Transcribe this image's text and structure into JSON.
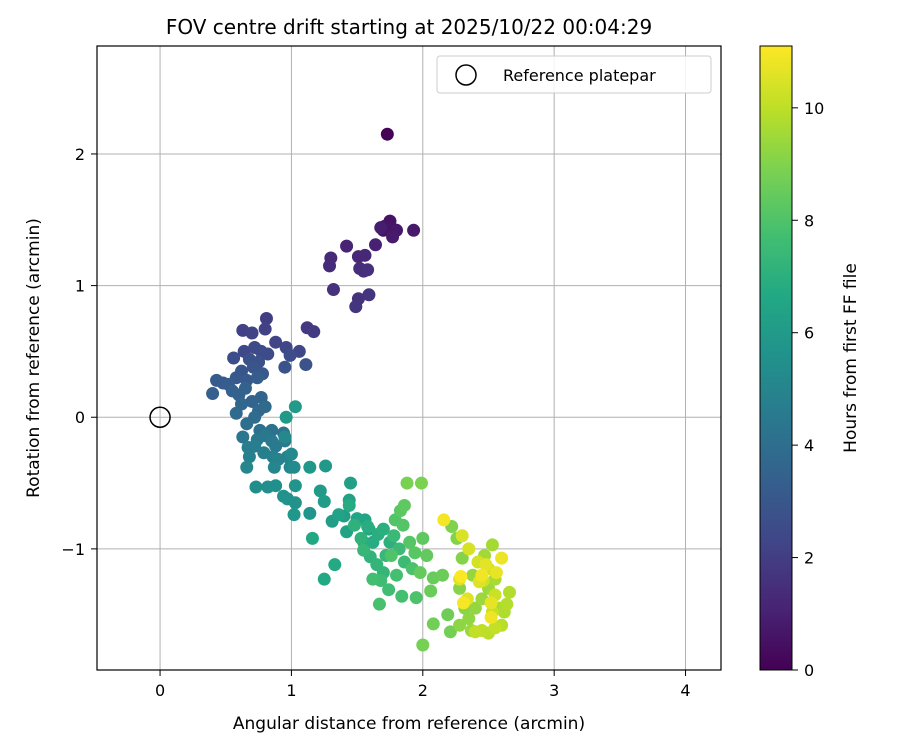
{
  "chart_data": {
    "type": "scatter",
    "title": "FOV centre drift starting at 2025/10/22 00:04:29",
    "xlabel": "Angular distance from reference (arcmin)",
    "ylabel": "Rotation from reference (arcmin)",
    "xlim": [
      -0.48,
      4.27
    ],
    "ylim": [
      -1.92,
      2.82
    ],
    "xticks": [
      0,
      1,
      2,
      3,
      4
    ],
    "yticks": [
      -1,
      0,
      1,
      2
    ],
    "grid": true,
    "legend": {
      "position": "top-right",
      "entries": [
        "Reference platepar"
      ]
    },
    "reference_point": {
      "name": "Reference platepar",
      "x": 0,
      "y": 0
    },
    "colorbar": {
      "label": "Hours from first FF file",
      "min": 0,
      "max": 11.1,
      "ticks": [
        0,
        2,
        4,
        6,
        8,
        10
      ],
      "colormap": "viridis"
    },
    "points": [
      [
        1.73,
        2.15,
        0.05
      ],
      [
        1.71,
        1.45,
        0.5
      ],
      [
        1.75,
        1.49,
        0.55
      ],
      [
        1.7,
        1.42,
        0.6
      ],
      [
        1.76,
        1.44,
        0.62
      ],
      [
        1.8,
        1.42,
        0.7
      ],
      [
        1.93,
        1.42,
        0.75
      ],
      [
        1.77,
        1.37,
        0.8
      ],
      [
        1.68,
        1.44,
        0.9
      ],
      [
        1.64,
        1.31,
        1.0
      ],
      [
        1.42,
        1.3,
        1.1
      ],
      [
        1.51,
        1.22,
        1.2
      ],
      [
        1.56,
        1.23,
        1.25
      ],
      [
        1.3,
        1.21,
        1.3
      ],
      [
        1.29,
        1.15,
        1.35
      ],
      [
        1.52,
        1.13,
        1.4
      ],
      [
        1.55,
        1.11,
        1.45
      ],
      [
        1.58,
        1.12,
        1.5
      ],
      [
        1.32,
        0.97,
        1.55
      ],
      [
        1.51,
        0.9,
        1.6
      ],
      [
        1.59,
        0.93,
        1.65
      ],
      [
        1.49,
        0.84,
        1.7
      ],
      [
        1.12,
        0.68,
        1.8
      ],
      [
        1.17,
        0.65,
        1.9
      ],
      [
        0.81,
        0.75,
        2.0
      ],
      [
        0.8,
        0.67,
        2.1
      ],
      [
        0.63,
        0.66,
        2.15
      ],
      [
        0.7,
        0.64,
        2.2
      ],
      [
        0.88,
        0.57,
        2.25
      ],
      [
        0.96,
        0.53,
        2.3
      ],
      [
        1.06,
        0.5,
        2.35
      ],
      [
        0.64,
        0.5,
        2.4
      ],
      [
        0.72,
        0.53,
        2.45
      ],
      [
        0.77,
        0.5,
        2.5
      ],
      [
        0.82,
        0.48,
        2.55
      ],
      [
        0.99,
        0.47,
        2.6
      ],
      [
        0.56,
        0.45,
        2.65
      ],
      [
        0.68,
        0.44,
        2.7
      ],
      [
        0.75,
        0.42,
        2.75
      ],
      [
        1.11,
        0.4,
        2.8
      ],
      [
        0.95,
        0.38,
        2.85
      ],
      [
        0.71,
        0.38,
        2.9
      ],
      [
        0.62,
        0.35,
        2.95
      ],
      [
        0.78,
        0.33,
        3.0
      ],
      [
        0.58,
        0.3,
        3.05
      ],
      [
        0.66,
        0.28,
        3.1
      ],
      [
        0.43,
        0.28,
        3.15
      ],
      [
        0.48,
        0.26,
        3.2
      ],
      [
        0.52,
        0.25,
        3.25
      ],
      [
        0.74,
        0.3,
        3.3
      ],
      [
        0.4,
        0.18,
        3.35
      ],
      [
        0.55,
        0.2,
        3.4
      ],
      [
        0.6,
        0.17,
        3.45
      ],
      [
        0.65,
        0.22,
        3.5
      ],
      [
        0.7,
        0.12,
        3.55
      ],
      [
        0.77,
        0.15,
        3.6
      ],
      [
        0.62,
        0.1,
        3.7
      ],
      [
        0.75,
        0.05,
        3.75
      ],
      [
        0.8,
        0.08,
        3.8
      ],
      [
        0.58,
        0.03,
        3.85
      ],
      [
        0.72,
        0.0,
        3.9
      ],
      [
        0.66,
        -0.05,
        4.0
      ],
      [
        0.76,
        -0.1,
        4.1
      ],
      [
        0.85,
        -0.1,
        4.15
      ],
      [
        0.94,
        -0.12,
        4.2
      ],
      [
        0.63,
        -0.15,
        4.3
      ],
      [
        0.74,
        -0.17,
        4.4
      ],
      [
        0.8,
        -0.14,
        4.45
      ],
      [
        0.85,
        -0.18,
        4.5
      ],
      [
        0.88,
        -0.22,
        4.55
      ],
      [
        0.95,
        -0.18,
        4.6
      ],
      [
        0.67,
        -0.23,
        4.65
      ],
      [
        0.72,
        -0.22,
        4.7
      ],
      [
        0.79,
        -0.27,
        4.75
      ],
      [
        0.86,
        -0.3,
        4.8
      ],
      [
        0.68,
        -0.3,
        4.85
      ],
      [
        0.9,
        -0.32,
        4.9
      ],
      [
        0.97,
        -0.3,
        4.95
      ],
      [
        0.99,
        -0.38,
        5.0
      ],
      [
        0.87,
        -0.38,
        5.05
      ],
      [
        0.66,
        -0.38,
        5.1
      ],
      [
        0.95,
        -0.15,
        5.15
      ],
      [
        1.0,
        -0.28,
        5.2
      ],
      [
        1.02,
        -0.38,
        5.3
      ],
      [
        0.73,
        -0.53,
        5.4
      ],
      [
        0.82,
        -0.53,
        5.45
      ],
      [
        0.88,
        -0.52,
        5.5
      ],
      [
        0.94,
        -0.6,
        5.55
      ],
      [
        0.97,
        -0.62,
        5.6
      ],
      [
        1.03,
        -0.65,
        5.65
      ],
      [
        1.03,
        -0.52,
        5.7
      ],
      [
        1.14,
        -0.73,
        5.75
      ],
      [
        1.02,
        -0.74,
        5.8
      ],
      [
        1.14,
        -0.38,
        5.85
      ],
      [
        1.26,
        -0.37,
        5.9
      ],
      [
        0.96,
        0.0,
        5.95
      ],
      [
        1.03,
        0.08,
        6.0
      ],
      [
        1.22,
        -0.56,
        6.05
      ],
      [
        1.25,
        -0.64,
        6.1
      ],
      [
        1.31,
        -0.79,
        6.15
      ],
      [
        1.4,
        -0.75,
        6.2
      ],
      [
        1.45,
        -0.5,
        6.25
      ],
      [
        1.44,
        -0.63,
        6.3
      ],
      [
        1.36,
        -0.74,
        6.35
      ],
      [
        1.42,
        -0.87,
        6.4
      ],
      [
        1.5,
        -0.77,
        6.45
      ],
      [
        1.56,
        -0.78,
        6.5
      ],
      [
        1.59,
        -0.85,
        6.55
      ],
      [
        1.16,
        -0.92,
        6.6
      ],
      [
        1.25,
        -1.23,
        6.65
      ],
      [
        1.33,
        -1.12,
        6.7
      ],
      [
        1.44,
        -0.67,
        6.75
      ],
      [
        1.55,
        -0.95,
        6.8
      ],
      [
        1.62,
        -0.95,
        6.85
      ],
      [
        1.58,
        -0.83,
        6.9
      ],
      [
        1.66,
        -0.89,
        6.95
      ],
      [
        1.7,
        -0.85,
        7.0
      ],
      [
        1.75,
        -0.95,
        7.05
      ],
      [
        1.48,
        -0.82,
        7.1
      ],
      [
        1.53,
        -0.92,
        7.15
      ],
      [
        1.6,
        -1.06,
        7.2
      ],
      [
        1.65,
        -1.12,
        7.25
      ],
      [
        1.7,
        -1.18,
        7.3
      ],
      [
        1.55,
        -1.01,
        7.35
      ],
      [
        1.72,
        -1.05,
        7.4
      ],
      [
        1.78,
        -0.9,
        7.45
      ],
      [
        1.82,
        -1.0,
        7.5
      ],
      [
        1.86,
        -1.1,
        7.55
      ],
      [
        1.68,
        -1.24,
        7.6
      ],
      [
        1.74,
        -1.31,
        7.65
      ],
      [
        1.62,
        -1.23,
        7.7
      ],
      [
        1.8,
        -1.2,
        7.75
      ],
      [
        1.84,
        -1.36,
        7.8
      ],
      [
        1.67,
        -1.42,
        7.85
      ],
      [
        1.92,
        -1.15,
        7.9
      ],
      [
        1.95,
        -1.37,
        7.95
      ],
      [
        1.76,
        -1.05,
        8.0
      ],
      [
        1.79,
        -0.78,
        8.05
      ],
      [
        1.85,
        -0.82,
        8.1
      ],
      [
        1.9,
        -0.95,
        8.15
      ],
      [
        1.94,
        -1.03,
        8.2
      ],
      [
        1.83,
        -0.71,
        8.25
      ],
      [
        1.86,
        -0.67,
        8.3
      ],
      [
        2.0,
        -0.92,
        8.35
      ],
      [
        2.03,
        -1.05,
        8.4
      ],
      [
        1.98,
        -1.18,
        8.45
      ],
      [
        2.08,
        -1.22,
        8.5
      ],
      [
        2.06,
        -1.32,
        8.55
      ],
      [
        2.15,
        -1.2,
        8.6
      ],
      [
        2.19,
        -1.5,
        8.65
      ],
      [
        2.08,
        -1.57,
        8.7
      ],
      [
        2.21,
        -1.63,
        8.75
      ],
      [
        2.0,
        -1.73,
        8.8
      ],
      [
        1.88,
        -0.5,
        8.85
      ],
      [
        1.99,
        -0.5,
        8.9
      ],
      [
        2.22,
        -0.83,
        8.95
      ],
      [
        2.26,
        -0.92,
        9.0
      ],
      [
        2.3,
        -1.07,
        9.05
      ],
      [
        2.28,
        -1.3,
        9.1
      ],
      [
        2.32,
        -1.45,
        9.15
      ],
      [
        2.28,
        -1.58,
        9.2
      ],
      [
        2.35,
        -1.53,
        9.25
      ],
      [
        2.4,
        -1.45,
        9.3
      ],
      [
        2.38,
        -1.2,
        9.35
      ],
      [
        2.37,
        -1.62,
        9.4
      ],
      [
        2.45,
        -1.38,
        9.45
      ],
      [
        2.5,
        -1.3,
        9.5
      ],
      [
        2.47,
        -1.05,
        9.55
      ],
      [
        2.53,
        -0.97,
        9.6
      ],
      [
        2.55,
        -1.23,
        9.65
      ],
      [
        2.58,
        -1.45,
        9.7
      ],
      [
        2.62,
        -1.48,
        9.75
      ],
      [
        2.66,
        -1.33,
        9.8
      ],
      [
        2.64,
        -1.42,
        9.85
      ],
      [
        2.6,
        -1.58,
        9.9
      ],
      [
        2.5,
        -1.64,
        9.95
      ],
      [
        2.45,
        -1.62,
        10.0
      ],
      [
        2.4,
        -1.63,
        10.05
      ],
      [
        2.55,
        -1.6,
        10.1
      ],
      [
        2.53,
        -1.48,
        10.15
      ],
      [
        2.55,
        -1.35,
        10.2
      ],
      [
        2.5,
        -1.15,
        10.25
      ],
      [
        2.46,
        -1.24,
        10.3
      ],
      [
        2.42,
        -1.1,
        10.35
      ],
      [
        2.35,
        -1.0,
        10.4
      ],
      [
        2.3,
        -0.9,
        10.45
      ],
      [
        2.28,
        -1.23,
        10.5
      ],
      [
        2.34,
        -1.38,
        10.55
      ],
      [
        2.43,
        -1.25,
        10.6
      ],
      [
        2.48,
        -1.12,
        10.65
      ],
      [
        2.52,
        -1.41,
        10.7
      ],
      [
        2.56,
        -1.18,
        10.75
      ],
      [
        2.6,
        -1.07,
        10.8
      ],
      [
        2.52,
        -1.52,
        10.85
      ],
      [
        2.45,
        -1.2,
        10.9
      ],
      [
        2.16,
        -0.78,
        10.95
      ],
      [
        2.31,
        -1.41,
        11.0
      ],
      [
        2.29,
        -1.21,
        11.05
      ]
    ]
  }
}
